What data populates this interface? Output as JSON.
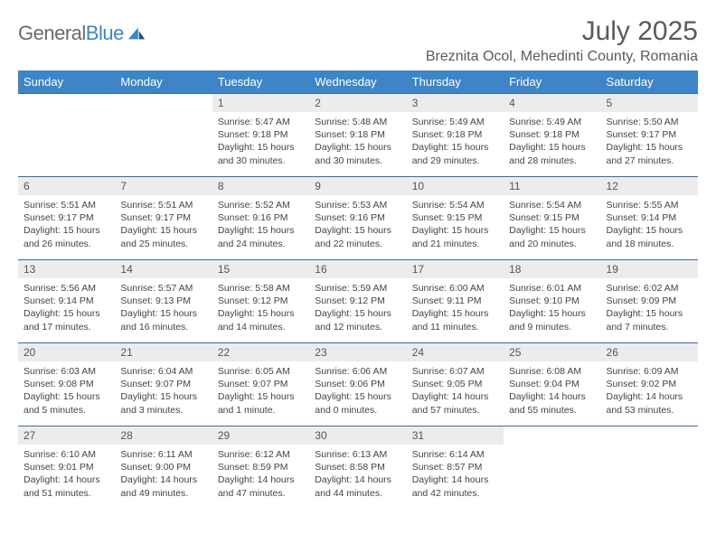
{
  "brand": {
    "general": "General",
    "blue": "Blue"
  },
  "title": "July 2025",
  "location": "Breznita Ocol, Mehedinti County, Romania",
  "colors": {
    "header_bg": "#3d85c6",
    "header_text": "#ffffff",
    "daynum_bg": "#ececec",
    "border": "#3d6a9a",
    "text": "#444444",
    "title_text": "#5a5a5a"
  },
  "day_headers": [
    "Sunday",
    "Monday",
    "Tuesday",
    "Wednesday",
    "Thursday",
    "Friday",
    "Saturday"
  ],
  "weeks": [
    [
      null,
      null,
      {
        "d": "1",
        "sr": "5:47 AM",
        "ss": "9:18 PM",
        "dl": "15 hours and 30 minutes."
      },
      {
        "d": "2",
        "sr": "5:48 AM",
        "ss": "9:18 PM",
        "dl": "15 hours and 30 minutes."
      },
      {
        "d": "3",
        "sr": "5:49 AM",
        "ss": "9:18 PM",
        "dl": "15 hours and 29 minutes."
      },
      {
        "d": "4",
        "sr": "5:49 AM",
        "ss": "9:18 PM",
        "dl": "15 hours and 28 minutes."
      },
      {
        "d": "5",
        "sr": "5:50 AM",
        "ss": "9:17 PM",
        "dl": "15 hours and 27 minutes."
      }
    ],
    [
      {
        "d": "6",
        "sr": "5:51 AM",
        "ss": "9:17 PM",
        "dl": "15 hours and 26 minutes."
      },
      {
        "d": "7",
        "sr": "5:51 AM",
        "ss": "9:17 PM",
        "dl": "15 hours and 25 minutes."
      },
      {
        "d": "8",
        "sr": "5:52 AM",
        "ss": "9:16 PM",
        "dl": "15 hours and 24 minutes."
      },
      {
        "d": "9",
        "sr": "5:53 AM",
        "ss": "9:16 PM",
        "dl": "15 hours and 22 minutes."
      },
      {
        "d": "10",
        "sr": "5:54 AM",
        "ss": "9:15 PM",
        "dl": "15 hours and 21 minutes."
      },
      {
        "d": "11",
        "sr": "5:54 AM",
        "ss": "9:15 PM",
        "dl": "15 hours and 20 minutes."
      },
      {
        "d": "12",
        "sr": "5:55 AM",
        "ss": "9:14 PM",
        "dl": "15 hours and 18 minutes."
      }
    ],
    [
      {
        "d": "13",
        "sr": "5:56 AM",
        "ss": "9:14 PM",
        "dl": "15 hours and 17 minutes."
      },
      {
        "d": "14",
        "sr": "5:57 AM",
        "ss": "9:13 PM",
        "dl": "15 hours and 16 minutes."
      },
      {
        "d": "15",
        "sr": "5:58 AM",
        "ss": "9:12 PM",
        "dl": "15 hours and 14 minutes."
      },
      {
        "d": "16",
        "sr": "5:59 AM",
        "ss": "9:12 PM",
        "dl": "15 hours and 12 minutes."
      },
      {
        "d": "17",
        "sr": "6:00 AM",
        "ss": "9:11 PM",
        "dl": "15 hours and 11 minutes."
      },
      {
        "d": "18",
        "sr": "6:01 AM",
        "ss": "9:10 PM",
        "dl": "15 hours and 9 minutes."
      },
      {
        "d": "19",
        "sr": "6:02 AM",
        "ss": "9:09 PM",
        "dl": "15 hours and 7 minutes."
      }
    ],
    [
      {
        "d": "20",
        "sr": "6:03 AM",
        "ss": "9:08 PM",
        "dl": "15 hours and 5 minutes."
      },
      {
        "d": "21",
        "sr": "6:04 AM",
        "ss": "9:07 PM",
        "dl": "15 hours and 3 minutes."
      },
      {
        "d": "22",
        "sr": "6:05 AM",
        "ss": "9:07 PM",
        "dl": "15 hours and 1 minute."
      },
      {
        "d": "23",
        "sr": "6:06 AM",
        "ss": "9:06 PM",
        "dl": "15 hours and 0 minutes."
      },
      {
        "d": "24",
        "sr": "6:07 AM",
        "ss": "9:05 PM",
        "dl": "14 hours and 57 minutes."
      },
      {
        "d": "25",
        "sr": "6:08 AM",
        "ss": "9:04 PM",
        "dl": "14 hours and 55 minutes."
      },
      {
        "d": "26",
        "sr": "6:09 AM",
        "ss": "9:02 PM",
        "dl": "14 hours and 53 minutes."
      }
    ],
    [
      {
        "d": "27",
        "sr": "6:10 AM",
        "ss": "9:01 PM",
        "dl": "14 hours and 51 minutes."
      },
      {
        "d": "28",
        "sr": "6:11 AM",
        "ss": "9:00 PM",
        "dl": "14 hours and 49 minutes."
      },
      {
        "d": "29",
        "sr": "6:12 AM",
        "ss": "8:59 PM",
        "dl": "14 hours and 47 minutes."
      },
      {
        "d": "30",
        "sr": "6:13 AM",
        "ss": "8:58 PM",
        "dl": "14 hours and 44 minutes."
      },
      {
        "d": "31",
        "sr": "6:14 AM",
        "ss": "8:57 PM",
        "dl": "14 hours and 42 minutes."
      },
      null,
      null
    ]
  ],
  "labels": {
    "sunrise": "Sunrise: ",
    "sunset": "Sunset: ",
    "daylight": "Daylight: "
  }
}
